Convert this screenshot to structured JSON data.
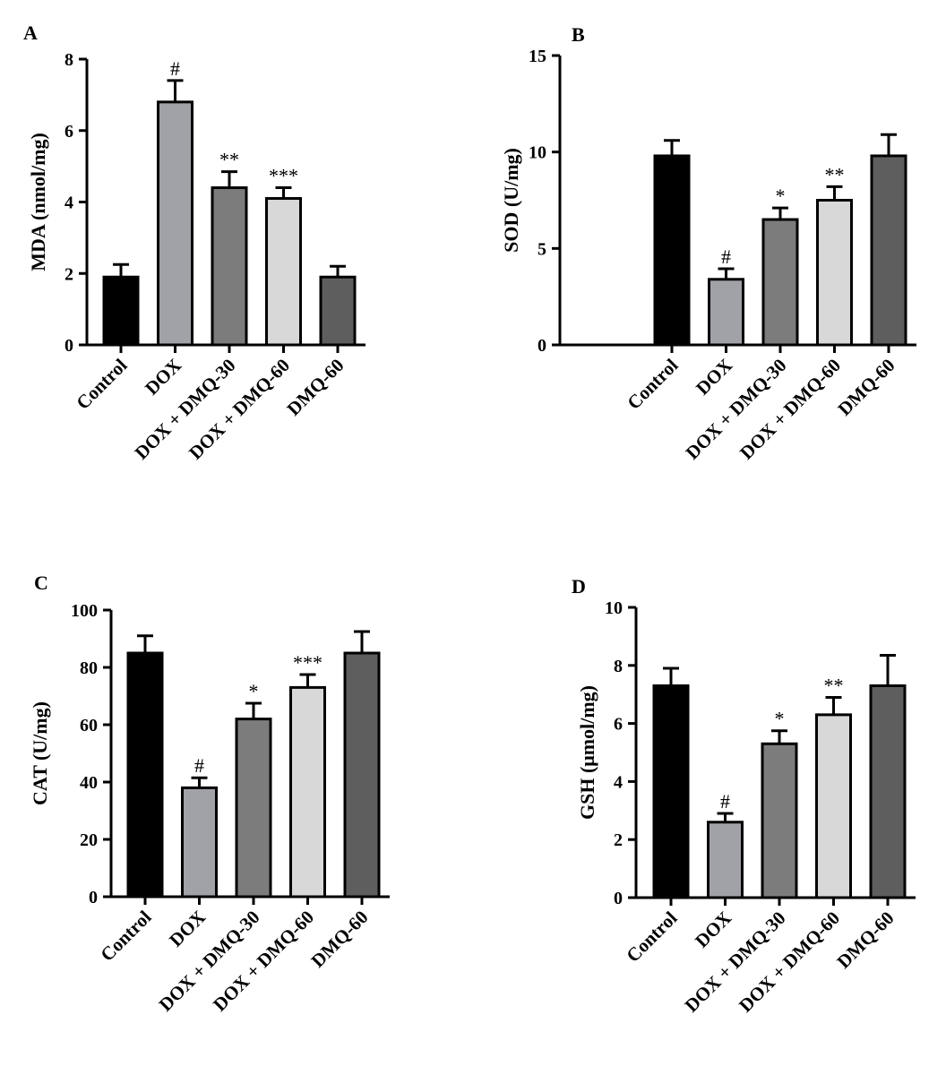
{
  "chart_data": [
    {
      "type": "bar",
      "panel": "A",
      "ylabel": "MDA (nmol/mg)",
      "ylim": [
        0,
        8
      ],
      "yticks": [
        0,
        2,
        4,
        6,
        8
      ],
      "categories": [
        "Control",
        "DOX",
        "DOX + DMQ-30",
        "DOX + DMQ-60",
        "DMQ-60"
      ],
      "values": [
        1.9,
        6.8,
        4.4,
        4.1,
        1.9
      ],
      "errors": [
        0.35,
        0.6,
        0.45,
        0.3,
        0.3
      ],
      "annotations": [
        "",
        "#",
        "**",
        "***",
        ""
      ]
    },
    {
      "type": "bar",
      "panel": "B",
      "ylabel": "SOD (U/mg)",
      "ylim": [
        0,
        15
      ],
      "yticks": [
        0,
        5,
        10,
        15
      ],
      "categories": [
        "Control",
        "DOX",
        "DOX + DMQ-30",
        "DOX + DMQ-60",
        "DMQ-60"
      ],
      "values": [
        9.8,
        3.4,
        6.5,
        7.5,
        9.8
      ],
      "errors": [
        0.8,
        0.55,
        0.6,
        0.7,
        1.1
      ],
      "annotations": [
        "",
        "#",
        "*",
        "**",
        ""
      ]
    },
    {
      "type": "bar",
      "panel": "C",
      "ylabel": "CAT (U/mg)",
      "ylim": [
        0,
        100
      ],
      "yticks": [
        0,
        20,
        40,
        60,
        80,
        100
      ],
      "categories": [
        "Control",
        "DOX",
        "DOX + DMQ-30",
        "DOX + DMQ-60",
        "DMQ-60"
      ],
      "values": [
        85,
        38,
        62,
        73,
        85
      ],
      "errors": [
        6,
        3.5,
        5.5,
        4.5,
        7.5
      ],
      "annotations": [
        "",
        "#",
        "*",
        "***",
        ""
      ]
    },
    {
      "type": "bar",
      "panel": "D",
      "ylabel": "GSH (μmol/mg)",
      "ylim": [
        0,
        10
      ],
      "yticks": [
        0,
        2,
        4,
        6,
        8,
        10
      ],
      "categories": [
        "Control",
        "DOX",
        "DOX + DMQ-30",
        "DOX + DMQ-60",
        "DMQ-60"
      ],
      "values": [
        7.3,
        2.6,
        5.3,
        6.3,
        7.3
      ],
      "errors": [
        0.6,
        0.3,
        0.45,
        0.6,
        1.05
      ],
      "annotations": [
        "",
        "#",
        "*",
        "**",
        ""
      ]
    }
  ],
  "bar_colors": [
    "#000000",
    "#a1a1a8",
    "#7c7c7c",
    "#d8d8d8",
    "#5e5e5e"
  ]
}
